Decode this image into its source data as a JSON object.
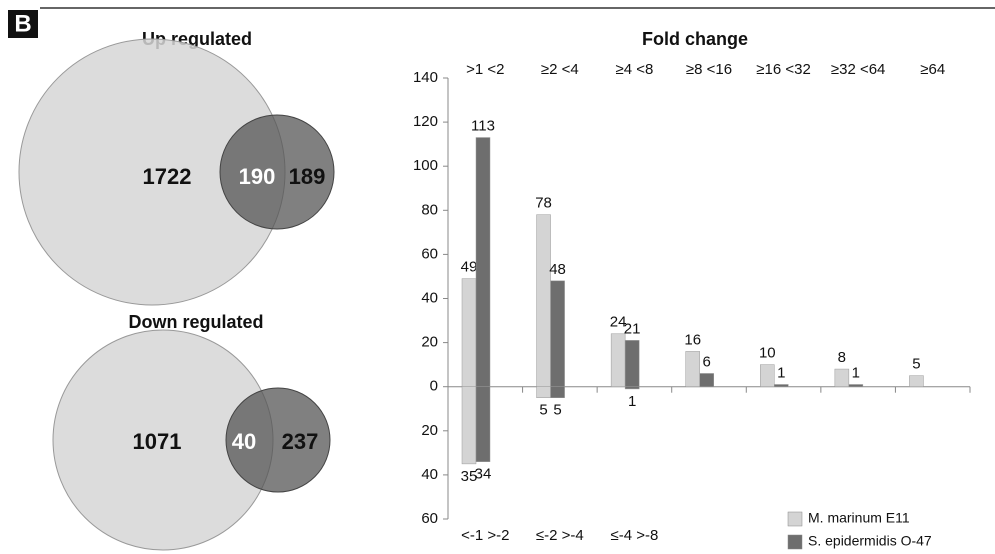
{
  "panel_label": "B",
  "venns": [
    {
      "title": "Up regulated",
      "left": 1722,
      "overlap": 190,
      "right": 189
    },
    {
      "title": "Down regulated",
      "left": 1071,
      "overlap": 40,
      "right": 237
    }
  ],
  "chart_data": {
    "type": "bar",
    "title": "Fold change",
    "categories": [
      ">1 <2",
      "≥2 <4",
      "≥4 <8",
      "≥8 <16",
      "≥16 <32",
      "≥32 <64",
      "≥64"
    ],
    "down_categories": [
      "<-1 >-2",
      "≤-2 >-4",
      "≤-4 >-8",
      null,
      null,
      null,
      null
    ],
    "series": [
      {
        "name": "M. marinum E11",
        "color": "#d4d4d4",
        "values": [
          49,
          78,
          24,
          16,
          10,
          8,
          5
        ],
        "down_values": [
          -35,
          -5,
          null,
          null,
          null,
          null,
          null
        ],
        "down_value_labels": [
          "35",
          "5",
          null,
          null,
          null,
          null,
          null
        ]
      },
      {
        "name": "S. epidermidis O-47",
        "color": "#6e6e6e",
        "values": [
          113,
          48,
          21,
          6,
          1,
          1,
          null
        ],
        "down_values": [
          -34,
          -5,
          -1,
          null,
          null,
          null,
          null
        ],
        "down_value_labels": [
          "34",
          "5",
          "1",
          null,
          null,
          null,
          null
        ]
      }
    ],
    "ylim": [
      -60,
      140
    ],
    "yticks": [
      {
        "value": -60,
        "label": "60"
      },
      {
        "value": -40,
        "label": "40"
      },
      {
        "value": -20,
        "label": "20"
      },
      0,
      20,
      40,
      60,
      80,
      100,
      120,
      140
    ],
    "legend": "bottom-right"
  }
}
